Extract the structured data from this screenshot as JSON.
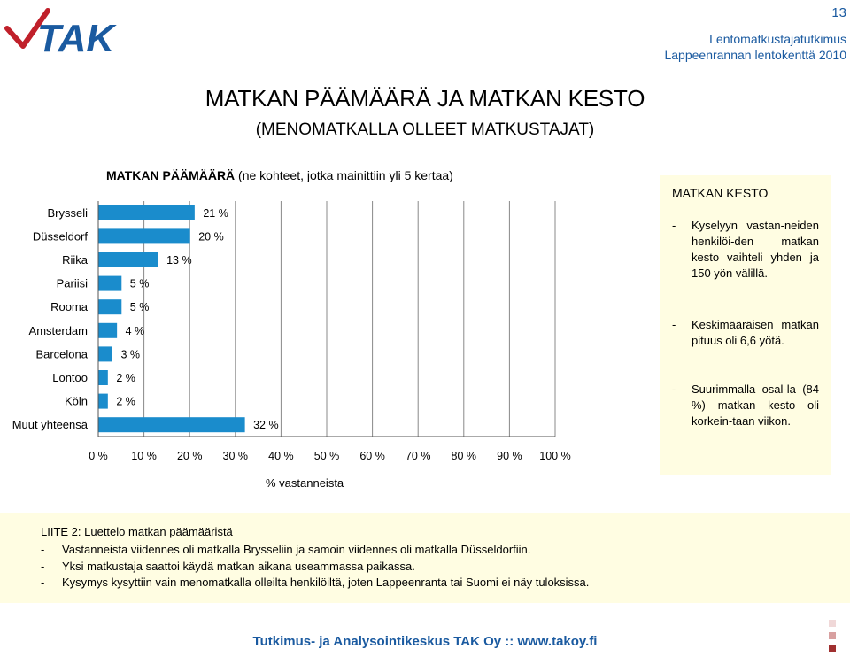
{
  "header": {
    "logo_text": "TAK",
    "page_number": "13",
    "line1": "Lentomatkustajatutkimus",
    "line2": "Lappeenrannan lentokenttä 2010"
  },
  "title": "MATKAN PÄÄMÄÄRÄ JA MATKAN KESTO",
  "subtitle": "(MENOMATKALLA OLLEET MATKUSTAJAT)",
  "chart_data": {
    "type": "bar",
    "orientation": "horizontal",
    "title_bold": "MATKAN PÄÄMÄÄRÄ",
    "title_rest": " (ne kohteet, jotka mainittiin yli 5 kertaa)",
    "categories": [
      "Brysseli",
      "Düsseldorf",
      "Riika",
      "Pariisi",
      "Rooma",
      "Amsterdam",
      "Barcelona",
      "Lontoo",
      "Köln",
      "Muut yhteensä"
    ],
    "values": [
      21,
      20,
      13,
      5,
      5,
      4,
      3,
      2,
      2,
      32
    ],
    "value_labels": [
      "21 %",
      "20 %",
      "13 %",
      "5 %",
      "5 %",
      "4 %",
      "3 %",
      "2 %",
      "2 %",
      "32 %"
    ],
    "xlim": [
      0,
      100
    ],
    "xticks": [
      "0 %",
      "10 %",
      "20 %",
      "30 %",
      "40 %",
      "50 %",
      "60 %",
      "70 %",
      "80 %",
      "90 %",
      "100 %"
    ],
    "xlabel": "% vastanneista",
    "grid": "vertical",
    "bar_color": "#1a8ccc"
  },
  "duration_box": {
    "heading": "MATKAN KESTO",
    "items": [
      "Kyselyyn vastan-neiden henkilöi-den matkan kesto vaihteli yhden ja 150 yön välillä.",
      "Keskimääräisen matkan pituus oli 6,6 yötä.",
      "Suurimmalla osal-la (84 %) matkan kesto oli korkein-taan viikon."
    ]
  },
  "notes": {
    "heading": "LIITE 2: Luettelo matkan päämääristä",
    "items": [
      "Vastanneista viidennes oli matkalla Brysseliin ja samoin viidennes oli matkalla Düsseldorfiin.",
      "Yksi matkustaja saattoi käydä matkan aikana useammassa paikassa.",
      "Kysymys kysyttiin vain menomatkalla olleilta henkilöiltä, joten Lappeenranta tai Suomi ei näy tuloksissa."
    ]
  },
  "footer": "Tutkimus- ja Analysointikeskus TAK Oy :: www.takoy.fi",
  "colors": {
    "accent": "#1a5aa0",
    "bar": "#1a8ccc",
    "box_bg": "#fffde2",
    "logo_red": "#c0202a"
  }
}
